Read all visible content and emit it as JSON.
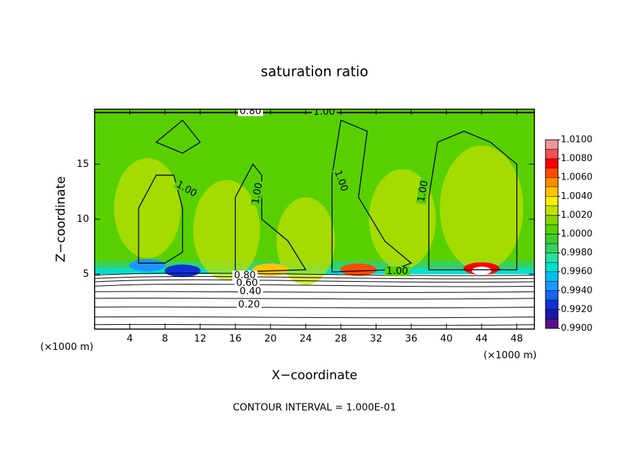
{
  "chart_data": {
    "type": "contour",
    "title": "saturation ratio",
    "xlabel": "X−coordinate",
    "ylabel": "Z−coordinate",
    "xunit": "(×1000 m)",
    "yunit": "(×1000 m)",
    "footer": "CONTOUR INTERVAL = 1.000E-01",
    "xlim": [
      0,
      50
    ],
    "ylim": [
      0,
      20
    ],
    "xticks": [
      4,
      8,
      12,
      16,
      20,
      24,
      28,
      32,
      36,
      40,
      44,
      48
    ],
    "yticks": [
      5,
      10,
      15
    ],
    "contour_labels": [
      {
        "value": 1,
        "label": "1.00"
      },
      {
        "value": 1,
        "label": "1.00"
      },
      {
        "value": 1,
        "label": "1.00"
      },
      {
        "value": 1,
        "label": "1.00"
      },
      {
        "value": 1,
        "label": "1.00"
      },
      {
        "value": 1,
        "label": "1.00"
      },
      {
        "value": 0.8,
        "label": "0.80"
      },
      {
        "value": 0.8,
        "label": "0.80"
      },
      {
        "value": 0.6,
        "label": "0.60"
      },
      {
        "value": 0.4,
        "label": "0.40"
      },
      {
        "value": 0.2,
        "label": "0.20"
      }
    ],
    "colorbar": {
      "levels": [
        {
          "value": 0.99,
          "label": "0.9900"
        },
        {
          "value": 0.992,
          "label": "0.9920"
        },
        {
          "value": 0.994,
          "label": "0.9940"
        },
        {
          "value": 0.996,
          "label": "0.9960"
        },
        {
          "value": 0.998,
          "label": "0.9980"
        },
        {
          "value": 1,
          "label": "1.0000"
        },
        {
          "value": 1.002,
          "label": "1.0020"
        },
        {
          "value": 1.004,
          "label": "1.0040"
        },
        {
          "value": 1.006,
          "label": "1.0060"
        },
        {
          "value": 1.008,
          "label": "1.0080"
        },
        {
          "value": 1.01,
          "label": "1.0100"
        }
      ],
      "colors": [
        "#5a108c",
        "#1a1aa8",
        "#1030d8",
        "#1a64f0",
        "#1e96ff",
        "#00c0f0",
        "#00e0d0",
        "#28e0a0",
        "#38d060",
        "#40cc30",
        "#58d000",
        "#88d400",
        "#c4e000",
        "#f8f000",
        "#ffc400",
        "#ff8c00",
        "#ff4c00",
        "#ff0000",
        "#f05050",
        "#f09898"
      ]
    }
  }
}
